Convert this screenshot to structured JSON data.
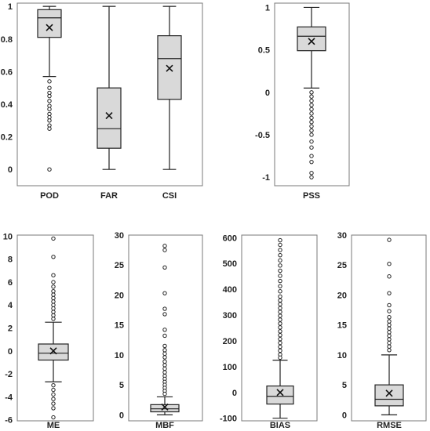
{
  "chart_data": [
    {
      "type": "box",
      "ylim": [
        -0.1,
        1.02
      ],
      "yticks": [
        "0",
        "0.2",
        "0.4",
        "0.6",
        "0.8",
        "1"
      ],
      "ytick_values": [
        0,
        0.2,
        0.4,
        0.6,
        0.8,
        1
      ],
      "categories": [
        {
          "label": "POD",
          "min": 0.57,
          "q1": 0.81,
          "median": 0.93,
          "q3": 0.98,
          "max": 1.0,
          "mean": 0.87,
          "outliers": [
            0.54,
            0.5,
            0.47,
            0.45,
            0.42,
            0.39,
            0.37,
            0.34,
            0.32,
            0.3,
            0.27,
            0.25,
            0.0
          ]
        },
        {
          "label": "FAR",
          "min": 0.0,
          "q1": 0.13,
          "median": 0.25,
          "q3": 0.5,
          "max": 1.0,
          "mean": 0.33,
          "outliers": []
        },
        {
          "label": "CSI",
          "min": 0.0,
          "q1": 0.43,
          "median": 0.68,
          "q3": 0.82,
          "max": 1.0,
          "mean": 0.62,
          "outliers": []
        }
      ]
    },
    {
      "type": "box",
      "ylim": [
        -1.1,
        1.05
      ],
      "yticks": [
        "-1",
        "-0.5",
        "0",
        "0.5",
        "1"
      ],
      "ytick_values": [
        -1,
        -0.5,
        0,
        0.5,
        1
      ],
      "categories": [
        {
          "label": "PSS",
          "min": 0.05,
          "q1": 0.49,
          "median": 0.66,
          "q3": 0.77,
          "max": 1.0,
          "mean": 0.6,
          "outliers": [
            0.0,
            -0.05,
            -0.1,
            -0.15,
            -0.2,
            -0.25,
            -0.3,
            -0.35,
            -0.4,
            -0.45,
            -0.5,
            -0.58,
            -0.65,
            -0.75,
            -0.82,
            -0.95,
            -1.0
          ]
        }
      ]
    },
    {
      "type": "box",
      "ylim": [
        -6.1,
        10.1
      ],
      "yticks": [
        "-6",
        "-4",
        "-2",
        "0",
        "2",
        "4",
        "6",
        "8",
        "10"
      ],
      "ytick_values": [
        -6,
        -4,
        -2,
        0,
        2,
        4,
        6,
        8,
        10
      ],
      "categories": [
        {
          "label": "ME",
          "min": -2.7,
          "q1": -0.8,
          "median": -0.2,
          "q3": 0.6,
          "max": 2.5,
          "mean": 0.0,
          "outliers": [
            9.8,
            8.2,
            6.6,
            6.0,
            5.6,
            5.2,
            4.9,
            4.6,
            4.3,
            4.0,
            3.7,
            3.4,
            3.1,
            2.8,
            -3.0,
            -3.4,
            -3.8,
            -4.2,
            -4.6,
            -5.0,
            -5.8
          ]
        }
      ]
    },
    {
      "type": "box",
      "ylim": [
        -1,
        30
      ],
      "yticks": [
        "0",
        "5",
        "10",
        "15",
        "20",
        "25",
        "30"
      ],
      "ytick_values": [
        0,
        5,
        10,
        15,
        20,
        25,
        30
      ],
      "categories": [
        {
          "label": "MBF",
          "min": 0.0,
          "q1": 0.5,
          "median": 1.0,
          "q3": 1.7,
          "max": 3.0,
          "mean": 1.3,
          "outliers": [
            28.2,
            27.5,
            24.6,
            20.3,
            17.7,
            16.8,
            14.2,
            13.2,
            11.5,
            10.8,
            10.2,
            9.6,
            8.9,
            8.3,
            7.7,
            7.1,
            6.5,
            6.0,
            5.5,
            5.0,
            4.5,
            4.0,
            3.5
          ]
        }
      ]
    },
    {
      "type": "box",
      "ylim": [
        -110,
        610
      ],
      "yticks": [
        "-100",
        "0",
        "100",
        "200",
        "300",
        "400",
        "500",
        "600"
      ],
      "ytick_values": [
        -100,
        0,
        100,
        200,
        300,
        400,
        500,
        600
      ],
      "categories": [
        {
          "label": "BIAS",
          "min": -100,
          "q1": -45,
          "median": -15,
          "q3": 25,
          "max": 125,
          "mean": 0,
          "outliers": [
            590,
            572,
            552,
            532,
            512,
            492,
            472,
            452,
            432,
            412,
            392,
            372,
            357,
            342,
            327,
            312,
            297,
            282,
            267,
            252,
            237,
            222,
            207,
            192,
            177,
            162,
            147,
            135
          ]
        }
      ]
    },
    {
      "type": "box",
      "ylim": [
        -1,
        30
      ],
      "yticks": [
        "0",
        "5",
        "10",
        "15",
        "20",
        "25",
        "30"
      ],
      "ytick_values": [
        0,
        5,
        10,
        15,
        20,
        25,
        30
      ],
      "categories": [
        {
          "label": "RMSE",
          "min": 0.0,
          "q1": 1.5,
          "median": 2.6,
          "q3": 5.0,
          "max": 10.0,
          "mean": 3.6,
          "outliers": [
            29.2,
            25.2,
            23.1,
            20.3,
            18.3,
            17.3,
            16.3,
            15.6,
            15.0,
            14.4,
            13.8,
            13.2,
            12.6,
            12.0,
            11.4,
            10.8
          ]
        }
      ]
    }
  ]
}
